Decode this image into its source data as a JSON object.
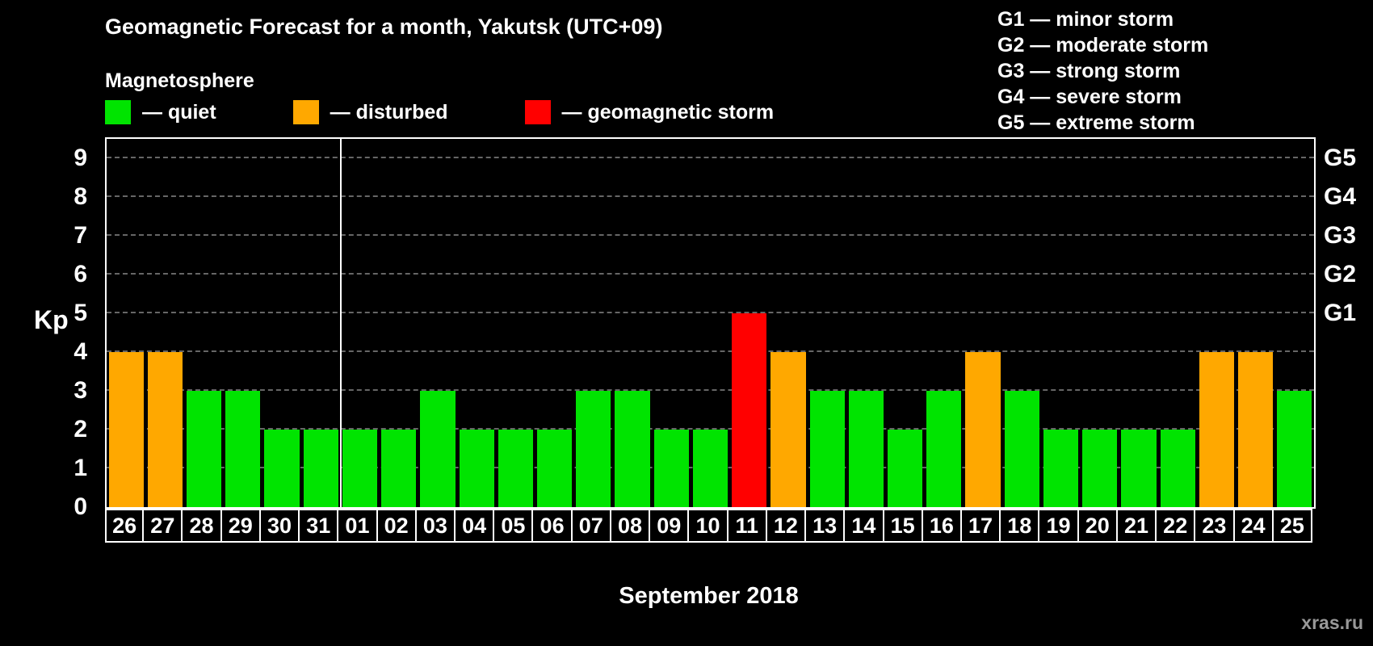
{
  "header": {
    "subtitle": "Magnetosphere"
  },
  "legend": {
    "items": [
      {
        "key": "quiet",
        "label": "— quiet"
      },
      {
        "key": "disturbed",
        "label": "— disturbed"
      },
      {
        "key": "storm",
        "label": "— geomagnetic storm"
      }
    ]
  },
  "g_legend": {
    "items": [
      "G1 — minor storm",
      "G2 — moderate storm",
      "G3 — strong storm",
      "G4 — severe storm",
      "G5 — extreme storm"
    ]
  },
  "footer": {
    "watermark": "xras.ru"
  },
  "chart_data": {
    "type": "bar",
    "title": "Geomagnetic Forecast for a month, Yakutsk (UTC+09)",
    "xlabel": "September 2018",
    "ylabel": "Kp",
    "ylim": [
      0,
      9
    ],
    "yticks": [
      0,
      1,
      2,
      3,
      4,
      5,
      6,
      7,
      8,
      9
    ],
    "right_axis": {
      "G1": 5,
      "G2": 6,
      "G3": 7,
      "G4": 8,
      "G5": 9
    },
    "grid": "dashed horizontal at each Kp level",
    "month_boundary_after_index": 5,
    "categories": [
      "26",
      "27",
      "28",
      "29",
      "30",
      "31",
      "01",
      "02",
      "03",
      "04",
      "05",
      "06",
      "07",
      "08",
      "09",
      "10",
      "11",
      "12",
      "13",
      "14",
      "15",
      "16",
      "17",
      "18",
      "19",
      "20",
      "21",
      "22",
      "23",
      "24",
      "25"
    ],
    "values": [
      4,
      4,
      3,
      3,
      2,
      2,
      2,
      2,
      3,
      2,
      2,
      2,
      3,
      3,
      2,
      2,
      5,
      4,
      3,
      3,
      2,
      3,
      4,
      3,
      2,
      2,
      2,
      2,
      4,
      4,
      3
    ],
    "statuses": [
      "disturbed",
      "disturbed",
      "quiet",
      "quiet",
      "quiet",
      "quiet",
      "quiet",
      "quiet",
      "quiet",
      "quiet",
      "quiet",
      "quiet",
      "quiet",
      "quiet",
      "quiet",
      "quiet",
      "storm",
      "disturbed",
      "quiet",
      "quiet",
      "quiet",
      "quiet",
      "disturbed",
      "quiet",
      "quiet",
      "quiet",
      "quiet",
      "quiet",
      "disturbed",
      "disturbed",
      "quiet"
    ],
    "status_colors": {
      "quiet": "#00e400",
      "disturbed": "#ffa800",
      "storm": "#ff0000"
    }
  }
}
